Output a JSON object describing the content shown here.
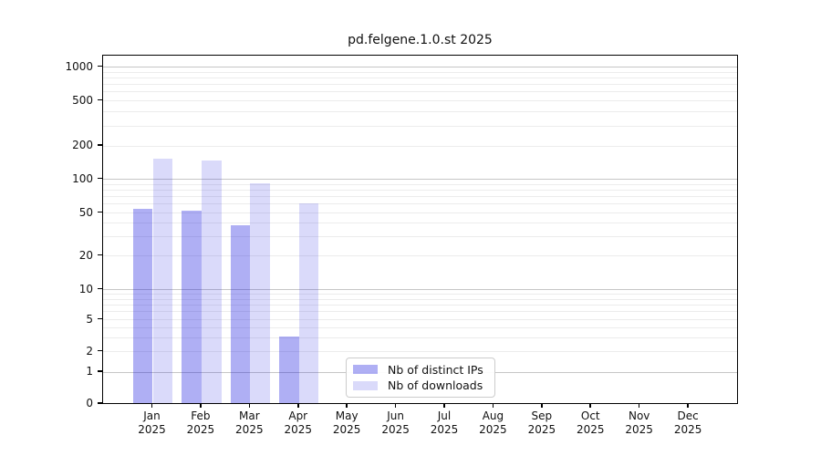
{
  "chart_data": {
    "type": "bar",
    "title": "pd.felgene.1.0.st 2025",
    "year": "2025",
    "months": [
      "Jan",
      "Feb",
      "Mar",
      "Apr",
      "May",
      "Jun",
      "Jul",
      "Aug",
      "Sep",
      "Oct",
      "Nov",
      "Dec"
    ],
    "series": [
      {
        "name": "Nb of distinct IPs",
        "color": "rgba(20,20,224,0.34)",
        "values": [
          53,
          51,
          38,
          3,
          0,
          0,
          0,
          0,
          0,
          0,
          0,
          0
        ]
      },
      {
        "name": "Nb of downloads",
        "color": "rgba(20,20,224,0.155)",
        "values": [
          150,
          145,
          90,
          60,
          0,
          0,
          0,
          0,
          0,
          0,
          0,
          0
        ]
      }
    ],
    "y_ticks": [
      0,
      1,
      2,
      5,
      10,
      20,
      50,
      100,
      200,
      500,
      1000
    ],
    "yscale": "symlog",
    "ylim": [
      0,
      1300
    ],
    "xlabel": "",
    "ylabel": "",
    "grid": true,
    "legend_position": "lower-center"
  }
}
